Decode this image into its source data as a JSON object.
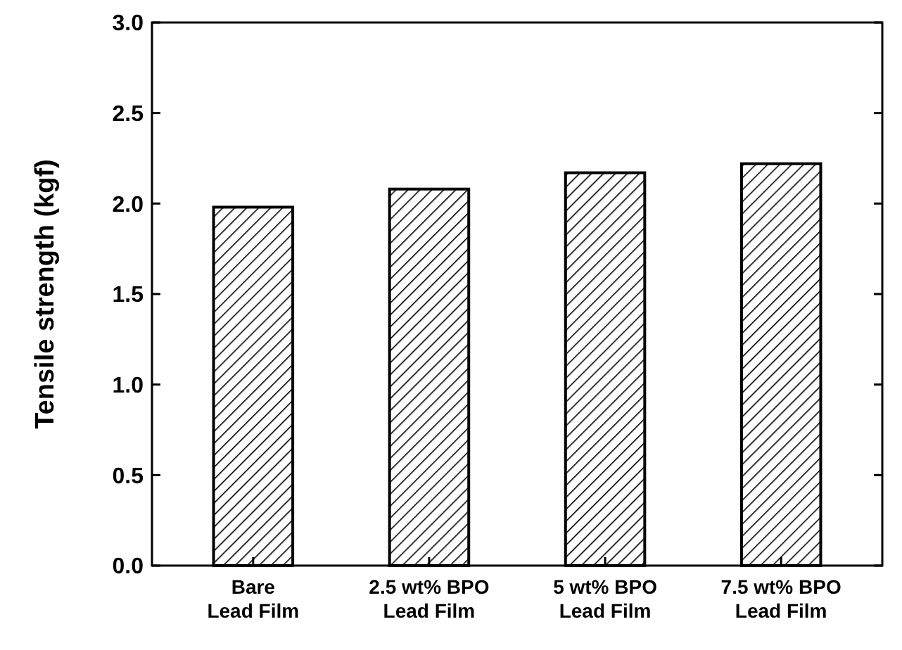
{
  "chart_data": {
    "type": "bar",
    "ylabel": "Tensile strength (kgf)",
    "categories": [
      "Bare\nLead Film",
      "2.5 wt% BPO\nLead Film",
      "5 wt% BPO\nLead Film",
      "7.5 wt% BPO\nLead Film"
    ],
    "values": [
      1.98,
      2.08,
      2.17,
      2.22
    ],
    "color": "#000000",
    "ylim": [
      0,
      3
    ],
    "yticks": [
      {
        "value": 0,
        "label": "0.0"
      },
      {
        "value": 0.5,
        "label": "0.5"
      },
      {
        "value": 1,
        "label": "1.0"
      },
      {
        "value": 1.5,
        "label": "1.5"
      },
      {
        "value": 2,
        "label": "2.0"
      },
      {
        "value": 2.5,
        "label": "2.5"
      },
      {
        "value": 3,
        "label": "3.0"
      }
    ],
    "grid": false
  }
}
